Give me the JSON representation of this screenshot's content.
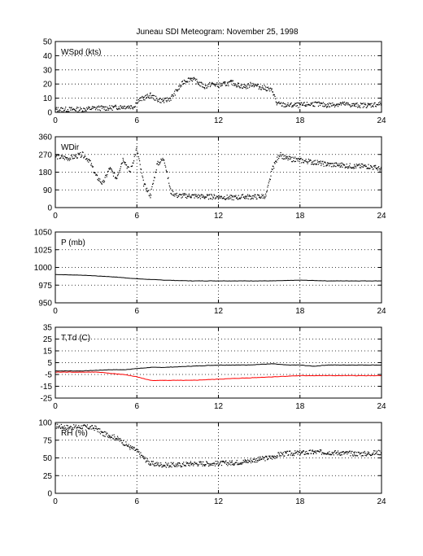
{
  "title": "Juneau SDI Meteogram:  November 25, 1998",
  "x_ticks": [
    "0",
    "6",
    "12",
    "18",
    "24"
  ],
  "chart_data": [
    {
      "type": "scatter",
      "panel_label": "WSpd (kts)",
      "xlim": [
        0,
        24
      ],
      "ylim": [
        0,
        50
      ],
      "y_ticks": [
        "0",
        "10",
        "20",
        "30",
        "40",
        "50"
      ],
      "grid": true,
      "series": [
        {
          "color": "#000000",
          "style": "dots",
          "x": [
            0,
            1,
            2,
            3,
            4,
            5,
            5.8,
            6,
            6.5,
            7,
            7.5,
            8,
            8.5,
            9,
            9.5,
            10,
            10.5,
            11,
            11.5,
            12,
            12.5,
            13,
            13.5,
            14,
            14.5,
            15,
            15.5,
            16,
            16.3,
            17,
            18,
            19,
            20,
            21,
            22,
            23,
            24
          ],
          "y": [
            2,
            2,
            2,
            3,
            3,
            4,
            4,
            8,
            10,
            12,
            9,
            8,
            10,
            16,
            22,
            24,
            21,
            18,
            20,
            19,
            20,
            21,
            19,
            18,
            20,
            18,
            17,
            15,
            6,
            5,
            5,
            6,
            5,
            6,
            5,
            5,
            6
          ]
        }
      ]
    },
    {
      "type": "scatter",
      "panel_label": "WDir",
      "xlim": [
        0,
        24
      ],
      "ylim": [
        0,
        360
      ],
      "y_ticks": [
        "0",
        "90",
        "180",
        "270",
        "360"
      ],
      "grid": true,
      "series": [
        {
          "color": "#000000",
          "style": "dots",
          "x": [
            0,
            1,
            2,
            2.5,
            3,
            3.5,
            4,
            4.5,
            5,
            5.5,
            6,
            6.5,
            7,
            7.5,
            8,
            8.5,
            9,
            10,
            11,
            12,
            13,
            14,
            15,
            15.5,
            16,
            16.5,
            17,
            18,
            19,
            20,
            21,
            22,
            23,
            24
          ],
          "y": [
            260,
            250,
            270,
            240,
            160,
            120,
            200,
            150,
            250,
            180,
            300,
            120,
            60,
            220,
            250,
            80,
            60,
            60,
            55,
            55,
            50,
            55,
            55,
            60,
            200,
            270,
            250,
            240,
            230,
            220,
            215,
            210,
            210,
            195
          ]
        }
      ]
    },
    {
      "type": "line",
      "panel_label": "P (mb)",
      "xlim": [
        0,
        24
      ],
      "ylim": [
        950,
        1050
      ],
      "y_ticks": [
        "950",
        "975",
        "1000",
        "1025",
        "1050"
      ],
      "grid": true,
      "series": [
        {
          "color": "#000000",
          "style": "line",
          "x": [
            0,
            2,
            4,
            6,
            8,
            10,
            12,
            14,
            16,
            18,
            20,
            22,
            24
          ],
          "y": [
            990,
            989,
            987,
            984,
            982,
            981,
            981,
            981,
            981,
            982,
            981,
            981,
            981
          ]
        }
      ]
    },
    {
      "type": "line",
      "panel_label": "T,Td (C)",
      "xlim": [
        0,
        24
      ],
      "ylim": [
        -25,
        35
      ],
      "y_ticks": [
        "-25",
        "-15",
        "-5",
        "5",
        "15",
        "25",
        "35"
      ],
      "grid": true,
      "series": [
        {
          "color": "#000000",
          "style": "line",
          "x": [
            0,
            2,
            4,
            5,
            6,
            7,
            8,
            10,
            12,
            14,
            16,
            17,
            18,
            19,
            20,
            22,
            24
          ],
          "y": [
            -2,
            -2,
            -1,
            -1,
            0,
            1,
            1,
            2,
            3,
            3,
            4,
            3,
            3,
            2,
            3,
            3,
            3
          ]
        },
        {
          "color": "#ff0000",
          "style": "line",
          "x": [
            0,
            2,
            3,
            4,
            5,
            6,
            7,
            8,
            10,
            12,
            14,
            16,
            18,
            20,
            22,
            24
          ],
          "y": [
            -3,
            -3,
            -3,
            -4,
            -5,
            -7,
            -10,
            -10,
            -10,
            -9,
            -8,
            -7,
            -6,
            -6,
            -6,
            -6
          ]
        }
      ]
    },
    {
      "type": "scatter",
      "panel_label": "RH (%)",
      "xlim": [
        0,
        24
      ],
      "ylim": [
        0,
        100
      ],
      "y_ticks": [
        "0",
        "25",
        "50",
        "75",
        "100"
      ],
      "grid": true,
      "series": [
        {
          "color": "#000000",
          "style": "dots",
          "x": [
            0,
            1,
            2,
            3,
            3.5,
            4,
            4.5,
            5,
            5.5,
            6,
            6.5,
            7,
            8,
            9,
            10,
            11,
            12,
            13,
            14,
            15,
            16,
            16.5,
            17,
            18,
            19,
            20,
            21,
            22,
            23,
            24
          ],
          "y": [
            95,
            93,
            94,
            92,
            84,
            82,
            78,
            72,
            65,
            60,
            50,
            42,
            40,
            40,
            42,
            42,
            42,
            43,
            45,
            48,
            51,
            55,
            56,
            57,
            58,
            58,
            57,
            56,
            56,
            58
          ]
        }
      ]
    }
  ]
}
